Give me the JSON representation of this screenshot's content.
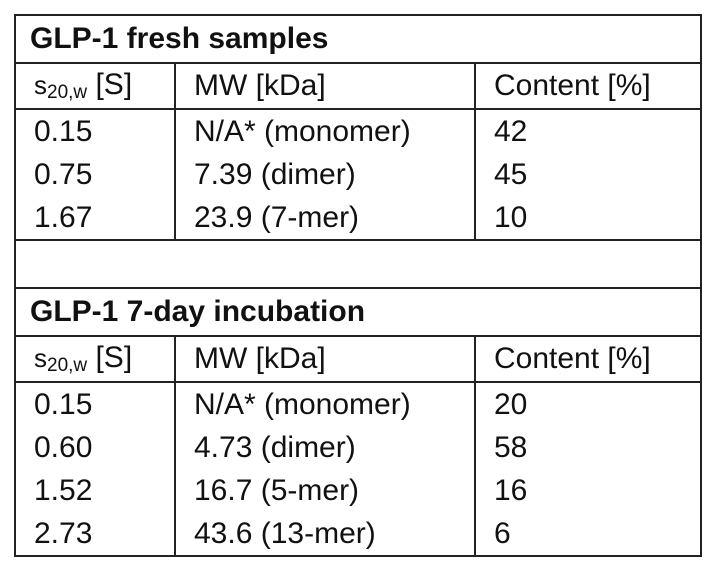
{
  "tables": [
    {
      "title": "GLP-1 fresh samples",
      "header": {
        "s_symbol": "s",
        "s_subscript": "20,w",
        "s_unit": " [S]",
        "mw": "MW [kDa]",
        "content": "Content [%]"
      },
      "rows": [
        {
          "s": "0.15",
          "mw": "N/A* (monomer)",
          "content": "42"
        },
        {
          "s": "0.75",
          "mw": "7.39 (dimer)",
          "content": "45"
        },
        {
          "s": "1.67",
          "mw": "23.9 (7-mer)",
          "content": "10"
        }
      ]
    },
    {
      "title": "GLP-1 7-day incubation",
      "header": {
        "s_symbol": "s",
        "s_subscript": "20,w",
        "s_unit": " [S]",
        "mw": "MW [kDa]",
        "content": "Content [%]"
      },
      "rows": [
        {
          "s": "0.15",
          "mw": "N/A* (monomer)",
          "content": "20"
        },
        {
          "s": "0.60",
          "mw": "4.73 (dimer)",
          "content": "58"
        },
        {
          "s": "1.52",
          "mw": "16.7 (5-mer)",
          "content": "16"
        },
        {
          "s": "2.73",
          "mw": "43.6 (13-mer)",
          "content": "6"
        }
      ]
    }
  ]
}
